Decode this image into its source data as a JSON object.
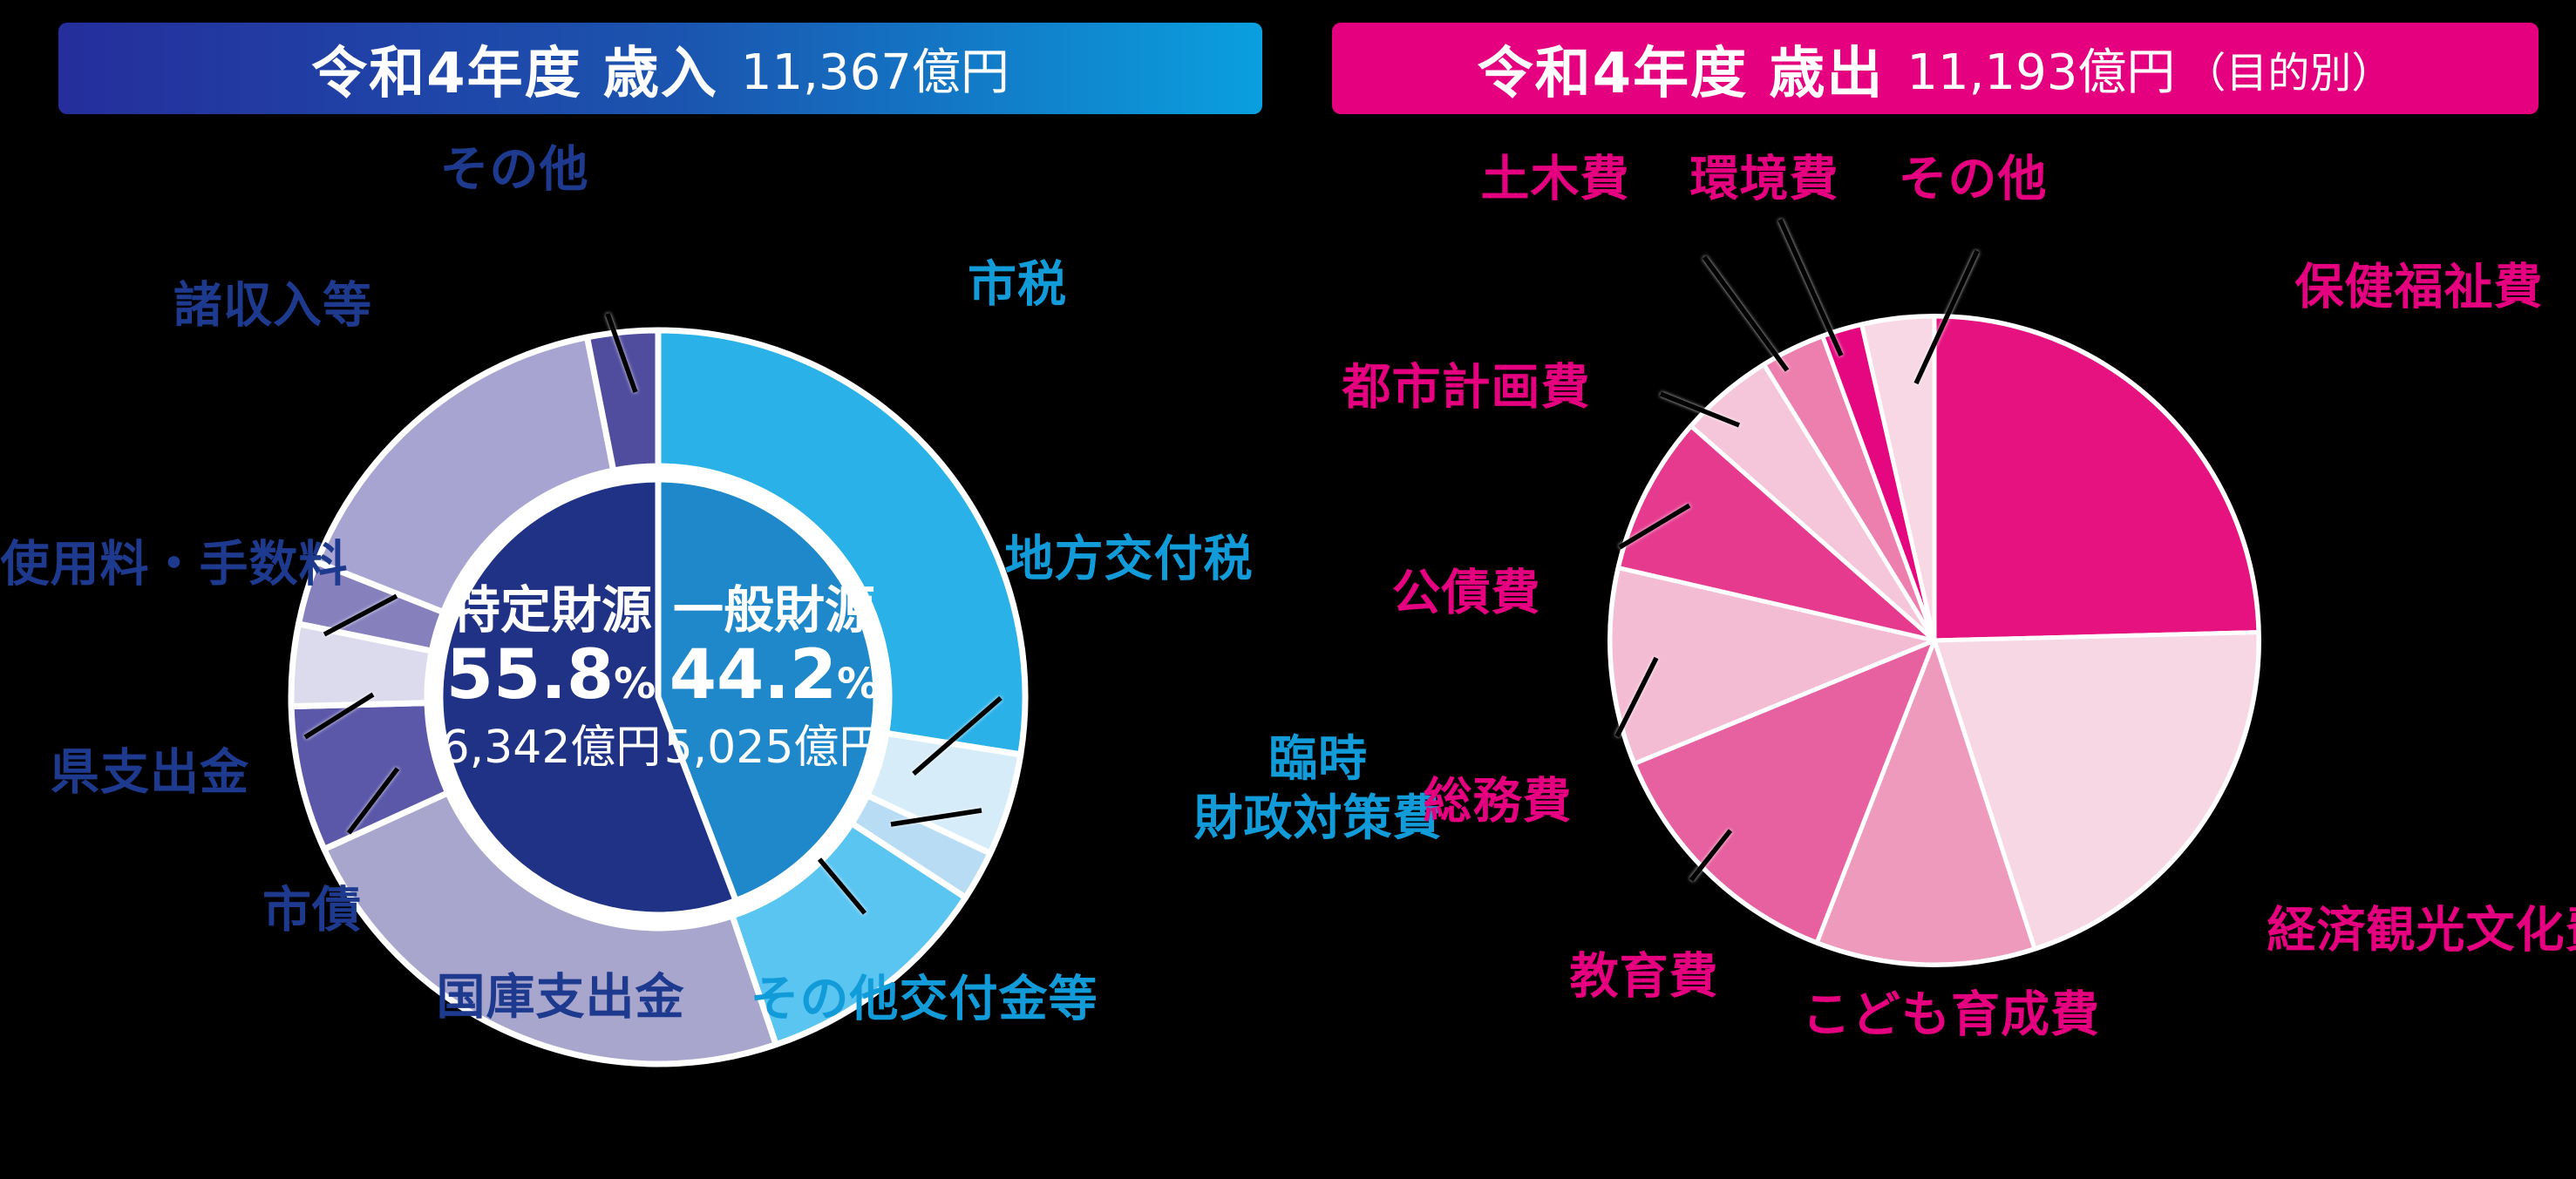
{
  "page": {
    "background": "#000000"
  },
  "left_chart": {
    "header": {
      "title": "令和4年度 歳入",
      "amount": "11,367億円"
    },
    "accent_color": "#129bd9",
    "label_colors": {
      "general_source_labels": "#129bd9",
      "specific_source_labels": "#1e3a8e"
    },
    "labels": {
      "other": "その他",
      "city_tax": "市税",
      "misc_income": "諸収入等",
      "local_allocation_tax": "地方交付税",
      "fees": "使用料・手数料",
      "rinzai_line1": "臨時",
      "rinzai_line2": "財政対策費",
      "pref_disbursement": "県支出金",
      "city_bonds": "市債",
      "national_treasury": "国庫支出金",
      "other_grants": "その他交付金等"
    },
    "center": [
      {
        "name": "特定財源",
        "percent": "55.8",
        "percent_suffix": "%",
        "amount": "6,342億円"
      },
      {
        "name": "一般財源",
        "percent": "44.2",
        "percent_suffix": "%",
        "amount": "5,025億円"
      }
    ],
    "chart_data": {
      "type": "pie",
      "subtype": "donut-with-inner-pie",
      "title": "令和4年度 歳入",
      "total": "11,367億円",
      "value_unit": "percent-of-total (visually estimated from segment angles)",
      "outer_segments": [
        {
          "label": "市税",
          "value": 27.5,
          "color": "#29b1e8"
        },
        {
          "label": "地方交付税",
          "value": 4.5,
          "color": "#d6ecf9"
        },
        {
          "label": "臨時財政対策費",
          "value": 2.2,
          "color": "#b7dcf3"
        },
        {
          "label": "その他交付金等",
          "value": 10.6,
          "color": "#5bc5f2"
        },
        {
          "label": "国庫支出金",
          "value": 23.4,
          "color": "#a9a6cd"
        },
        {
          "label": "市債",
          "value": 6.4,
          "color": "#5b58a9"
        },
        {
          "label": "県支出金",
          "value": 3.6,
          "color": "#dcdbed"
        },
        {
          "label": "使用料・手数料",
          "value": 2.8,
          "color": "#8680bd"
        },
        {
          "label": "諸収入等",
          "value": 15.9,
          "color": "#a8a4d2"
        },
        {
          "label": "その他",
          "value": 3.1,
          "color": "#504d9e"
        }
      ],
      "inner_segments": [
        {
          "label": "一般財源",
          "value": 44.2,
          "amount": "5,025億円",
          "color": "#1e88cb"
        },
        {
          "label": "特定財源",
          "value": 55.8,
          "amount": "6,342億円",
          "color": "#203285"
        }
      ],
      "start_angle_deg": 0,
      "direction": "clockwise"
    }
  },
  "right_chart": {
    "header": {
      "title": "令和4年度 歳出",
      "amount": "11,193億円",
      "note": "（目的別）"
    },
    "accent_color": "#e4007f",
    "labels": {
      "health_welfare": "保健福祉費",
      "economy_tourism_culture": "経済観光文化費",
      "child_development": "こども育成費",
      "education": "教育費",
      "general_affairs": "総務費",
      "public_debt": "公債費",
      "city_planning": "都市計画費",
      "civil_engineering": "土木費",
      "environment": "環境費",
      "other": "その他"
    },
    "chart_data": {
      "type": "pie",
      "title": "令和4年度 歳出（目的別）",
      "total": "11,193億円",
      "value_unit": "percent-of-total (visually estimated from segment angles)",
      "segments": [
        {
          "label": "保健福祉費",
          "value": 24.6,
          "color": "#e6127f"
        },
        {
          "label": "経済観光文化費",
          "value": 20.4,
          "color": "#f7d7e3"
        },
        {
          "label": "こども育成費",
          "value": 10.9,
          "color": "#ee9abc"
        },
        {
          "label": "教育費",
          "value": 12.9,
          "color": "#e7609f"
        },
        {
          "label": "総務費",
          "value": 9.8,
          "color": "#f3bcd3"
        },
        {
          "label": "公債費",
          "value": 7.9,
          "color": "#e63a8e"
        },
        {
          "label": "都市計画費",
          "value": 4.7,
          "color": "#f5c6d9"
        },
        {
          "label": "土木費",
          "value": 3.2,
          "color": "#ec7fae"
        },
        {
          "label": "環境費",
          "value": 2.0,
          "color": "#e4077f"
        },
        {
          "label": "その他",
          "value": 3.6,
          "color": "#f8d8e4"
        }
      ],
      "start_angle_deg": 0,
      "direction": "clockwise"
    }
  }
}
